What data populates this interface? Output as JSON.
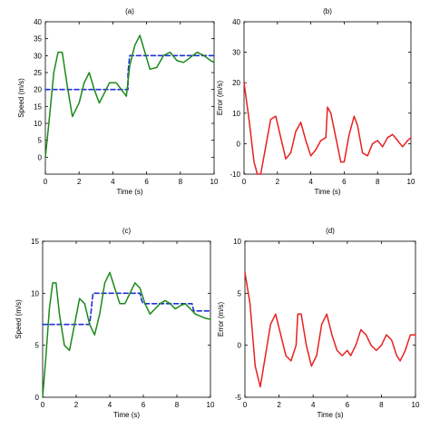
{
  "colors": {
    "reference": "#1f2fd8",
    "speed": "#1a8a1a",
    "error": "#e82020"
  },
  "chart_data": [
    {
      "id": "a",
      "type": "line",
      "title": "(a)",
      "xlabel": "Time (s)",
      "ylabel": "Speed (m/s)",
      "xlim": [
        0,
        10
      ],
      "ylim": [
        -5,
        40
      ],
      "xticks": [
        0,
        2,
        4,
        6,
        8,
        10
      ],
      "yticks": [
        0,
        5,
        10,
        15,
        20,
        25,
        30,
        35,
        40
      ],
      "series": [
        {
          "style": "dashed",
          "color_key": "reference",
          "x": [
            0,
            4.9,
            4.9,
            5.0,
            10
          ],
          "y": [
            20,
            20,
            25,
            30,
            30
          ]
        },
        {
          "style": "solid",
          "color_key": "speed",
          "x": [
            0,
            0.25,
            0.5,
            0.75,
            1.0,
            1.3,
            1.6,
            2.0,
            2.3,
            2.6,
            2.9,
            3.2,
            3.5,
            3.8,
            4.2,
            4.5,
            4.8,
            5.0,
            5.3,
            5.6,
            5.9,
            6.2,
            6.6,
            7.0,
            7.4,
            7.8,
            8.2,
            8.6,
            9.0,
            9.4,
            9.8,
            10.0
          ],
          "y": [
            0,
            12,
            25,
            31,
            31,
            21,
            12,
            16,
            22,
            25,
            20,
            16,
            19,
            22,
            22,
            20,
            18,
            27,
            33,
            36,
            31,
            26,
            26.5,
            30,
            31,
            28.5,
            28,
            29.5,
            31,
            30,
            28.5,
            28
          ]
        }
      ]
    },
    {
      "id": "b",
      "type": "line",
      "title": "(b)",
      "xlabel": "Time (s)",
      "ylabel": "Error (m/s)",
      "xlim": [
        0,
        10
      ],
      "ylim": [
        -10,
        40
      ],
      "xticks": [
        0,
        2,
        4,
        6,
        8,
        10
      ],
      "yticks": [
        -10,
        0,
        10,
        20,
        30,
        40
      ],
      "series": [
        {
          "style": "solid",
          "color_key": "error",
          "x": [
            0,
            0.3,
            0.6,
            0.8,
            1.0,
            1.3,
            1.6,
            1.9,
            2.2,
            2.5,
            2.8,
            3.1,
            3.4,
            3.7,
            4.0,
            4.3,
            4.6,
            4.9,
            5.0,
            5.2,
            5.5,
            5.8,
            6.0,
            6.3,
            6.6,
            6.8,
            7.1,
            7.4,
            7.7,
            8.0,
            8.3,
            8.6,
            8.9,
            9.2,
            9.5,
            9.8,
            10.0
          ],
          "y": [
            20,
            8,
            -6,
            -10,
            -10,
            -1,
            8,
            9,
            2,
            -5,
            -3,
            4,
            7,
            1,
            -4,
            -2,
            1,
            2,
            12,
            10,
            2,
            -6,
            -6,
            3,
            9,
            6,
            -3,
            -4,
            0,
            1,
            -1,
            2,
            3,
            1,
            -1,
            1,
            2
          ]
        }
      ]
    },
    {
      "id": "c",
      "type": "line",
      "title": "(c)",
      "xlabel": "Time (s)",
      "ylabel": "Speed (m/s)",
      "xlim": [
        0,
        10
      ],
      "ylim": [
        0,
        15
      ],
      "xticks": [
        0,
        2,
        4,
        6,
        8,
        10
      ],
      "yticks": [
        0,
        5,
        10,
        15
      ],
      "series": [
        {
          "style": "dashed",
          "color_key": "reference",
          "x": [
            0,
            2.8,
            2.9,
            3.0,
            5.8,
            5.9,
            6.0,
            8.9,
            9.0,
            10
          ],
          "y": [
            7,
            7,
            8.5,
            10,
            10,
            9.3,
            9,
            9,
            8.3,
            8.3
          ]
        },
        {
          "style": "solid",
          "color_key": "speed",
          "x": [
            0,
            0.2,
            0.4,
            0.6,
            0.8,
            1.0,
            1.3,
            1.6,
            1.9,
            2.2,
            2.5,
            2.8,
            3.1,
            3.4,
            3.7,
            4.0,
            4.3,
            4.6,
            4.9,
            5.2,
            5.5,
            5.8,
            6.1,
            6.4,
            6.7,
            7.0,
            7.3,
            7.6,
            7.9,
            8.2,
            8.5,
            8.8,
            9.1,
            9.4,
            9.7,
            10.0
          ],
          "y": [
            0,
            4,
            8.5,
            11,
            11,
            8,
            5,
            4.5,
            7,
            9.5,
            9,
            7,
            6,
            8,
            11,
            12,
            10.5,
            9,
            9,
            10,
            11,
            10.5,
            9,
            8,
            8.5,
            9,
            9.3,
            9,
            8.5,
            8.8,
            9,
            8.5,
            8,
            7.8,
            7.6,
            7.5
          ]
        }
      ]
    },
    {
      "id": "d",
      "type": "line",
      "title": "(d)",
      "xlabel": "Time (s)",
      "ylabel": "Error (m/s)",
      "xlim": [
        0,
        10
      ],
      "ylim": [
        -5,
        10
      ],
      "xticks": [
        0,
        2,
        4,
        6,
        8,
        10
      ],
      "yticks": [
        -5,
        0,
        5,
        10
      ],
      "series": [
        {
          "style": "solid",
          "color_key": "error",
          "x": [
            0,
            0.3,
            0.6,
            0.9,
            1.2,
            1.5,
            1.8,
            2.1,
            2.4,
            2.7,
            3.0,
            3.1,
            3.3,
            3.6,
            3.9,
            4.2,
            4.5,
            4.8,
            5.1,
            5.4,
            5.7,
            6.0,
            6.2,
            6.5,
            6.8,
            7.1,
            7.4,
            7.7,
            8.0,
            8.3,
            8.6,
            8.9,
            9.1,
            9.4,
            9.7,
            10.0
          ],
          "y": [
            7,
            4,
            -2,
            -4,
            -1,
            2,
            3,
            1,
            -1,
            -1.5,
            0,
            3,
            3,
            0,
            -2,
            -1,
            2,
            3,
            1,
            -0.5,
            -1,
            -0.5,
            -1,
            0,
            1.5,
            1,
            0,
            -0.5,
            0,
            1,
            0.5,
            -1,
            -1.5,
            -0.5,
            1,
            1
          ]
        }
      ]
    }
  ]
}
